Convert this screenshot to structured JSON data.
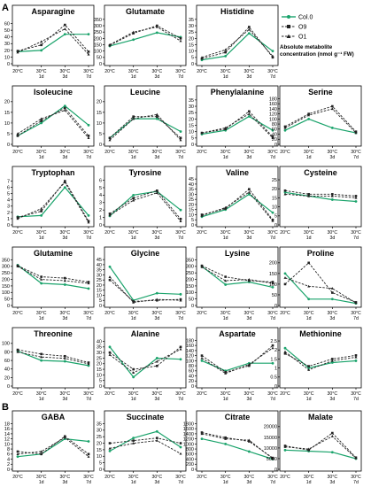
{
  "figure": {
    "section_labels": [
      "A",
      "B"
    ],
    "legend": {
      "entries": [
        {
          "name": "Col.0",
          "color": "#1aa36b",
          "dash": "solid",
          "marker": "dot"
        },
        {
          "name": "O9",
          "color": "#222222",
          "dash": "dashed",
          "marker": "square"
        },
        {
          "name": "O1",
          "color": "#222222",
          "dash": "dashed",
          "marker": "triangle"
        }
      ],
      "note_line1": "Absolute metabolite",
      "note_line2": "concentration (nmol g⁻¹ FW)"
    },
    "x_top": [
      "20°C",
      "30°C",
      "30°C",
      "30°C"
    ],
    "x_bottom": [
      "",
      "1d",
      "3d",
      "7d"
    ]
  },
  "chart_data": [
    {
      "type": "line",
      "title": "Asparagine",
      "categories": [
        "20°C",
        "30°C 1d",
        "30°C 3d",
        "30°C 7d"
      ],
      "yticks": [
        0,
        10,
        20,
        30,
        40,
        50,
        60
      ],
      "ylim": [
        0,
        70
      ],
      "series": [
        {
          "name": "Col.0",
          "values": [
            18,
            20,
            44,
            44
          ]
        },
        {
          "name": "O9",
          "values": [
            19,
            28,
            58,
            18
          ]
        },
        {
          "name": "O1",
          "values": [
            17,
            33,
            52,
            14
          ]
        }
      ]
    },
    {
      "type": "line",
      "title": "Glutamate",
      "categories": [
        "20°C",
        "30°C 1d",
        "30°C 3d",
        "30°C 7d"
      ],
      "yticks": [
        0,
        50,
        100,
        150,
        200,
        250,
        300,
        350
      ],
      "ylim": [
        0,
        370
      ],
      "series": [
        {
          "name": "Col.0",
          "values": [
            140,
            190,
            245,
            210
          ]
        },
        {
          "name": "O9",
          "values": [
            145,
            240,
            300,
            200
          ]
        },
        {
          "name": "O1",
          "values": [
            150,
            250,
            290,
            180
          ]
        }
      ]
    },
    {
      "type": "line",
      "title": "Histidine",
      "categories": [
        "20°C",
        "30°C 1d",
        "30°C 3d",
        "30°C 7d"
      ],
      "yticks": [
        0,
        5,
        10,
        15,
        20,
        25,
        30,
        35
      ],
      "ylim": [
        0,
        37
      ],
      "series": [
        {
          "name": "Col.0",
          "values": [
            3,
            6,
            24,
            10
          ]
        },
        {
          "name": "O9",
          "values": [
            4,
            9,
            29,
            5
          ]
        },
        {
          "name": "O1",
          "values": [
            5,
            11,
            27,
            6
          ]
        }
      ]
    },
    {
      "type": "line",
      "title": "Isoleucine",
      "categories": [
        "20°C",
        "30°C 1d",
        "30°C 3d",
        "30°C 7d"
      ],
      "yticks": [
        0,
        5,
        10,
        15,
        20
      ],
      "ylim": [
        0,
        22
      ],
      "series": [
        {
          "name": "Col.0",
          "values": [
            4,
            10,
            18,
            9
          ]
        },
        {
          "name": "O9",
          "values": [
            4,
            11,
            17,
            4
          ]
        },
        {
          "name": "O1",
          "values": [
            5,
            12,
            16,
            3
          ]
        }
      ]
    },
    {
      "type": "line",
      "title": "Leucine",
      "categories": [
        "20°C",
        "30°C 1d",
        "30°C 3d",
        "30°C 7d"
      ],
      "yticks": [
        0,
        5,
        10,
        15,
        20
      ],
      "ylim": [
        0,
        22
      ],
      "series": [
        {
          "name": "Col.0",
          "values": [
            3,
            12,
            12,
            6
          ]
        },
        {
          "name": "O9",
          "values": [
            3,
            13,
            13,
            3
          ]
        },
        {
          "name": "O1",
          "values": [
            2,
            12,
            14,
            2
          ]
        }
      ]
    },
    {
      "type": "line",
      "title": "Phenylalanine",
      "categories": [
        "20°C",
        "30°C 1d",
        "30°C 3d",
        "30°C 7d"
      ],
      "yticks": [
        0,
        5,
        10,
        15,
        20,
        25,
        30,
        35
      ],
      "ylim": [
        0,
        37
      ],
      "series": [
        {
          "name": "Col.0",
          "values": [
            8,
            11,
            22,
            11
          ]
        },
        {
          "name": "O9",
          "values": [
            9,
            12,
            26,
            6
          ]
        },
        {
          "name": "O1",
          "values": [
            9,
            13,
            24,
            5
          ]
        }
      ]
    },
    {
      "type": "line",
      "title": "Serine",
      "categories": [
        "20°C",
        "30°C 1d",
        "30°C 3d",
        "30°C 7d"
      ],
      "yticks": [
        0,
        20,
        40,
        60,
        80,
        100,
        120,
        140,
        160,
        180
      ],
      "ylim": [
        0,
        185
      ],
      "series": [
        {
          "name": "Col.0",
          "values": [
            55,
            100,
            65,
            45
          ]
        },
        {
          "name": "O9",
          "values": [
            70,
            120,
            150,
            50
          ]
        },
        {
          "name": "O1",
          "values": [
            65,
            115,
            140,
            45
          ]
        }
      ]
    },
    {
      "type": "line",
      "title": "Tryptophan",
      "categories": [
        "20°C",
        "30°C 1d",
        "30°C 3d",
        "30°C 7d"
      ],
      "yticks": [
        0,
        1,
        2,
        3,
        4,
        5,
        6,
        7
      ],
      "ylim": [
        0,
        7.5
      ],
      "series": [
        {
          "name": "Col.0",
          "values": [
            1.3,
            1.5,
            6.0,
            1.5
          ]
        },
        {
          "name": "O9",
          "values": [
            1.2,
            2.2,
            7.0,
            0.6
          ]
        },
        {
          "name": "O1",
          "values": [
            1.0,
            2.6,
            6.8,
            0.4
          ]
        }
      ]
    },
    {
      "type": "line",
      "title": "Tyrosine",
      "categories": [
        "20°C",
        "30°C 1d",
        "30°C 3d",
        "30°C 7d"
      ],
      "yticks": [
        0,
        1,
        2,
        3,
        4,
        5,
        6
      ],
      "ylim": [
        0,
        6.3
      ],
      "series": [
        {
          "name": "Col.0",
          "values": [
            1.2,
            4.0,
            4.5,
            2.0
          ]
        },
        {
          "name": "O9",
          "values": [
            1.5,
            3.6,
            4.6,
            0.8
          ]
        },
        {
          "name": "O1",
          "values": [
            1.3,
            3.3,
            4.3,
            0.5
          ]
        }
      ]
    },
    {
      "type": "line",
      "title": "Valine",
      "categories": [
        "20°C",
        "30°C 1d",
        "30°C 3d",
        "30°C 7d"
      ],
      "yticks": [
        0,
        5,
        10,
        15,
        20,
        25,
        30,
        35,
        40,
        45
      ],
      "ylim": [
        0,
        46
      ],
      "series": [
        {
          "name": "Col.0",
          "values": [
            8,
            15,
            30,
            12
          ]
        },
        {
          "name": "O9",
          "values": [
            10,
            16,
            35,
            5
          ]
        },
        {
          "name": "O1",
          "values": [
            9,
            17,
            32,
            4
          ]
        }
      ]
    },
    {
      "type": "line",
      "title": "Cysteine",
      "categories": [
        "20°C",
        "30°C 1d",
        "30°C 3d",
        "30°C 7d"
      ],
      "yticks": [
        0,
        5,
        10,
        15,
        20,
        25
      ],
      "ylim": [
        0,
        26
      ],
      "series": [
        {
          "name": "Col.0",
          "values": [
            18,
            16,
            14,
            13
          ]
        },
        {
          "name": "O9",
          "values": [
            19,
            17,
            17,
            16
          ]
        },
        {
          "name": "O1",
          "values": [
            17,
            16,
            16,
            15
          ]
        }
      ]
    },
    {
      "type": "line",
      "title": "Glutamine",
      "categories": [
        "20°C",
        "30°C 1d",
        "30°C 3d",
        "30°C 7d"
      ],
      "yticks": [
        0,
        50,
        100,
        150,
        200,
        250,
        300,
        350
      ],
      "ylim": [
        0,
        360
      ],
      "series": [
        {
          "name": "Col.0",
          "values": [
            310,
            170,
            160,
            130
          ]
        },
        {
          "name": "O9",
          "values": [
            305,
            220,
            210,
            180
          ]
        },
        {
          "name": "O1",
          "values": [
            300,
            200,
            190,
            170
          ]
        }
      ]
    },
    {
      "type": "line",
      "title": "Glycine",
      "categories": [
        "20°C",
        "30°C 1d",
        "30°C 3d",
        "30°C 7d"
      ],
      "yticks": [
        0,
        5,
        10,
        15,
        20,
        25,
        30,
        35,
        40,
        45
      ],
      "ylim": [
        0,
        46
      ],
      "series": [
        {
          "name": "Col.0",
          "values": [
            38,
            5,
            12,
            11
          ]
        },
        {
          "name": "O9",
          "values": [
            25,
            4,
            5,
            6
          ]
        },
        {
          "name": "O1",
          "values": [
            28,
            3,
            6,
            5
          ]
        }
      ]
    },
    {
      "type": "line",
      "title": "Lysine",
      "categories": [
        "20°C",
        "30°C 1d",
        "30°C 3d",
        "30°C 7d"
      ],
      "yticks": [
        0,
        50,
        100,
        150,
        200,
        250,
        300,
        350
      ],
      "ylim": [
        0,
        360
      ],
      "series": [
        {
          "name": "Col.0",
          "values": [
            300,
            160,
            180,
            140
          ]
        },
        {
          "name": "O9",
          "values": [
            305,
            220,
            190,
            180
          ]
        },
        {
          "name": "O1",
          "values": [
            295,
            190,
            200,
            170
          ]
        }
      ]
    },
    {
      "type": "line",
      "title": "Proline",
      "categories": [
        "20°C",
        "30°C 1d",
        "30°C 3d",
        "30°C 7d"
      ],
      "yticks": [
        0,
        50,
        100,
        150,
        200
      ],
      "ylim": [
        0,
        220
      ],
      "series": [
        {
          "name": "Col.0",
          "values": [
            150,
            30,
            30,
            10
          ]
        },
        {
          "name": "O9",
          "values": [
            100,
            200,
            60,
            15
          ]
        },
        {
          "name": "O1",
          "values": [
            130,
            90,
            80,
            12
          ]
        }
      ]
    },
    {
      "type": "line",
      "title": "Threonine",
      "categories": [
        "20°C",
        "30°C 1d",
        "30°C 3d",
        "30°C 7d"
      ],
      "yticks": [
        0,
        20,
        40,
        60,
        80,
        100
      ],
      "ylim": [
        0,
        110
      ],
      "series": [
        {
          "name": "Col.0",
          "values": [
            82,
            60,
            58,
            48
          ]
        },
        {
          "name": "O9",
          "values": [
            85,
            75,
            70,
            55
          ]
        },
        {
          "name": "O1",
          "values": [
            80,
            68,
            65,
            52
          ]
        }
      ]
    },
    {
      "type": "line",
      "title": "Alanine",
      "categories": [
        "20°C",
        "30°C 1d",
        "30°C 3d",
        "30°C 7d"
      ],
      "yticks": [
        0,
        5,
        10,
        15,
        20,
        25,
        30,
        35,
        40
      ],
      "ylim": [
        0,
        42
      ],
      "series": [
        {
          "name": "Col.0",
          "values": [
            35,
            8,
            25,
            24
          ]
        },
        {
          "name": "O9",
          "values": [
            30,
            15,
            18,
            35
          ]
        },
        {
          "name": "O1",
          "values": [
            28,
            12,
            22,
            33
          ]
        }
      ]
    },
    {
      "type": "line",
      "title": "Aspartate",
      "categories": [
        "20°C",
        "30°C 1d",
        "30°C 3d",
        "30°C 7d"
      ],
      "yticks": [
        0,
        20,
        40,
        60,
        80,
        100,
        120,
        140,
        160,
        180
      ],
      "ylim": [
        0,
        185
      ],
      "series": [
        {
          "name": "Col.0",
          "values": [
            100,
            60,
            90,
            90
          ]
        },
        {
          "name": "O9",
          "values": [
            120,
            55,
            80,
            160
          ]
        },
        {
          "name": "O1",
          "values": [
            110,
            50,
            85,
            150
          ]
        }
      ]
    },
    {
      "type": "line",
      "title": "Methionine",
      "categories": [
        "20°C",
        "30°C 1d",
        "30°C 3d",
        "30°C 7d"
      ],
      "yticks": [
        0,
        0.5,
        1,
        1.5,
        2,
        2.5
      ],
      "ylim": [
        0,
        2.6
      ],
      "series": [
        {
          "name": "Col.0",
          "values": [
            2.1,
            1.0,
            1.3,
            1.4
          ]
        },
        {
          "name": "O9",
          "values": [
            1.8,
            1.1,
            1.5,
            1.7
          ]
        },
        {
          "name": "O1",
          "values": [
            1.9,
            0.9,
            1.4,
            1.6
          ]
        }
      ]
    },
    {
      "type": "line",
      "title": "GABA",
      "categories": [
        "20°C",
        "30°C 1d",
        "30°C 3d",
        "30°C 7d"
      ],
      "yticks": [
        0,
        2,
        4,
        6,
        8,
        10,
        12,
        14,
        16,
        18
      ],
      "ylim": [
        0,
        18.5
      ],
      "series": [
        {
          "name": "Col.0",
          "values": [
            5,
            6,
            12,
            11
          ]
        },
        {
          "name": "O9",
          "values": [
            7,
            6,
            13,
            6
          ]
        },
        {
          "name": "O1",
          "values": [
            6,
            7,
            12.5,
            5
          ]
        }
      ]
    },
    {
      "type": "line",
      "title": "Succinate",
      "categories": [
        "20°C",
        "30°C 1d",
        "30°C 3d",
        "30°C 7d"
      ],
      "yticks": [
        0,
        5,
        10,
        15,
        20,
        25,
        30,
        35
      ],
      "ylim": [
        0,
        36
      ],
      "series": [
        {
          "name": "Col.0",
          "values": [
            14,
            24,
            29,
            17
          ]
        },
        {
          "name": "O9",
          "values": [
            20,
            22,
            24,
            20
          ]
        },
        {
          "name": "O1",
          "values": [
            16,
            20,
            22,
            12
          ]
        }
      ]
    },
    {
      "type": "line",
      "title": "Citrate",
      "categories": [
        "20°C",
        "30°C 1d",
        "30°C 3d",
        "30°C 7d"
      ],
      "yticks": [
        0,
        200,
        400,
        600,
        800,
        1000,
        1200,
        1400,
        1600,
        1800
      ],
      "ylim": [
        0,
        1850
      ],
      "series": [
        {
          "name": "Col.0",
          "values": [
            1200,
            1000,
            700,
            400
          ]
        },
        {
          "name": "O9",
          "values": [
            1450,
            1250,
            1100,
            450
          ]
        },
        {
          "name": "O1",
          "values": [
            1400,
            1200,
            1150,
            420
          ]
        }
      ]
    },
    {
      "type": "line",
      "title": "Malate",
      "categories": [
        "20°C",
        "30°C 1d",
        "30°C 3d",
        "30°C 7d"
      ],
      "yticks": [
        0,
        5000,
        10000,
        15000,
        20000
      ],
      "ylim": [
        0,
        22000
      ],
      "series": [
        {
          "name": "Col.0",
          "values": [
            9000,
            8500,
            8000,
            5000
          ]
        },
        {
          "name": "O9",
          "values": [
            11000,
            9000,
            17000,
            5500
          ]
        },
        {
          "name": "O1",
          "values": [
            10500,
            9500,
            15500,
            5200
          ]
        }
      ]
    }
  ]
}
